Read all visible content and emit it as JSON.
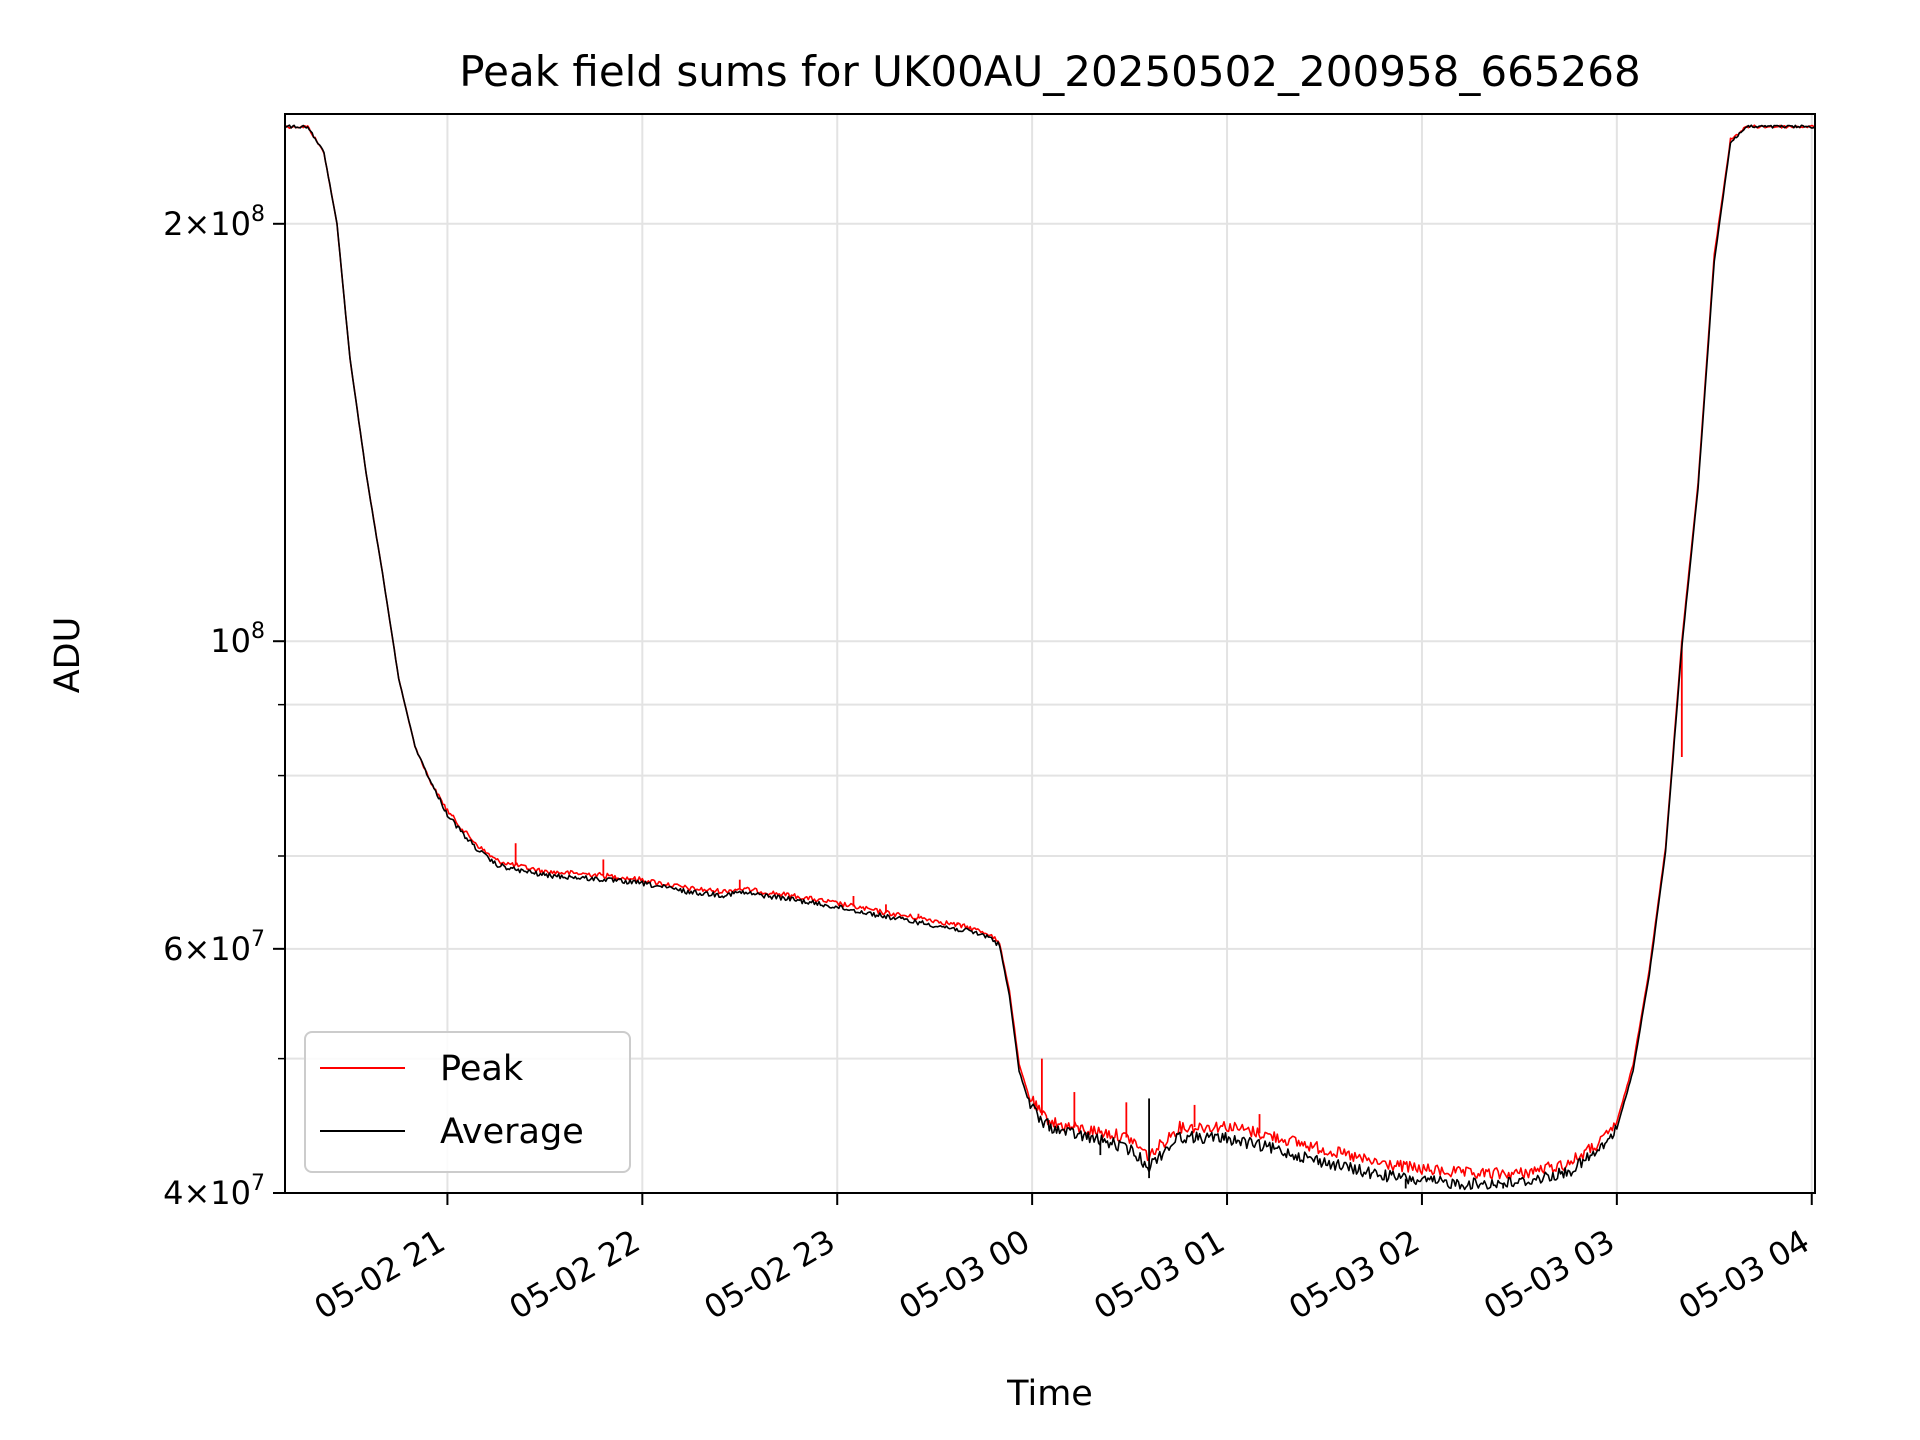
{
  "chart_data": {
    "type": "line",
    "title": "Peak field sums for UK00AU_20250502_200958_665268",
    "xlabel": "Time",
    "ylabel": "ADU",
    "yscale": "log",
    "xlim": [
      "2025-05-02 20:10",
      "2025-05-03 04:01"
    ],
    "ylim": [
      40000000,
      240000000
    ],
    "grid": true,
    "legend_position": "lower-left",
    "x_ticks": [
      {
        "t": "2025-05-02 21:00",
        "label": "05-02 21"
      },
      {
        "t": "2025-05-02 22:00",
        "label": "05-02 22"
      },
      {
        "t": "2025-05-02 23:00",
        "label": "05-02 23"
      },
      {
        "t": "2025-05-03 00:00",
        "label": "05-03 00"
      },
      {
        "t": "2025-05-03 01:00",
        "label": "05-03 01"
      },
      {
        "t": "2025-05-03 02:00",
        "label": "05-03 02"
      },
      {
        "t": "2025-05-03 03:00",
        "label": "05-03 03"
      },
      {
        "t": "2025-05-03 04:00",
        "label": "05-03 04"
      }
    ],
    "y_major_ticks": [
      {
        "value": 40000000,
        "mantissa": "4",
        "exp": "7"
      },
      {
        "value": 60000000,
        "mantissa": "6",
        "exp": "7"
      },
      {
        "value": 100000000,
        "mantissa": "",
        "exp": "8"
      },
      {
        "value": 200000000,
        "mantissa": "2",
        "exp": "8"
      }
    ],
    "y_minor_grid": [
      50000000,
      70000000,
      80000000,
      90000000
    ],
    "series": [
      {
        "name": "Peak",
        "color": "#ff0000",
        "points": [
          [
            "2025-05-02 20:10",
            235000000
          ],
          [
            "2025-05-02 20:17",
            235000000
          ],
          [
            "2025-05-02 20:22",
            225000000
          ],
          [
            "2025-05-02 20:26",
            200000000
          ],
          [
            "2025-05-02 20:30",
            160000000
          ],
          [
            "2025-05-02 20:35",
            132000000
          ],
          [
            "2025-05-02 20:40",
            112000000
          ],
          [
            "2025-05-02 20:45",
            94000000
          ],
          [
            "2025-05-02 20:50",
            84000000
          ],
          [
            "2025-05-02 20:55",
            79000000
          ],
          [
            "2025-05-02 21:00",
            75500000
          ],
          [
            "2025-05-02 21:05",
            73000000
          ],
          [
            "2025-05-02 21:10",
            71000000
          ],
          [
            "2025-05-02 21:15",
            69500000
          ],
          [
            "2025-05-02 21:20",
            69000000
          ],
          [
            "2025-05-02 21:30",
            68200000
          ],
          [
            "2025-05-02 21:45",
            67900000
          ],
          [
            "2025-05-02 22:00",
            67300000
          ],
          [
            "2025-05-02 22:15",
            66300000
          ],
          [
            "2025-05-02 22:25",
            66000000
          ],
          [
            "2025-05-02 22:30",
            66300000
          ],
          [
            "2025-05-02 22:45",
            65600000
          ],
          [
            "2025-05-02 23:00",
            64700000
          ],
          [
            "2025-05-02 23:15",
            63700000
          ],
          [
            "2025-05-02 23:30",
            62900000
          ],
          [
            "2025-05-02 23:40",
            62200000
          ],
          [
            "2025-05-02 23:47",
            61500000
          ],
          [
            "2025-05-02 23:50",
            60500000
          ],
          [
            "2025-05-02 23:53",
            56000000
          ],
          [
            "2025-05-02 23:56",
            49500000
          ],
          [
            "2025-05-02 23:59",
            47000000
          ],
          [
            "2025-05-03 00:03",
            45500000
          ],
          [
            "2025-05-03 00:08",
            44800000
          ],
          [
            "2025-05-03 00:15",
            44500000
          ],
          [
            "2025-05-03 00:25",
            44100000
          ],
          [
            "2025-05-03 00:30",
            43800000
          ],
          [
            "2025-05-03 00:36",
            42500000
          ],
          [
            "2025-05-03 00:45",
            44600000
          ],
          [
            "2025-05-03 01:00",
            44700000
          ],
          [
            "2025-05-03 01:15",
            43900000
          ],
          [
            "2025-05-03 01:30",
            43000000
          ],
          [
            "2025-05-03 01:45",
            42100000
          ],
          [
            "2025-05-03 02:00",
            41600000
          ],
          [
            "2025-05-03 02:15",
            41300000
          ],
          [
            "2025-05-03 02:30",
            41300000
          ],
          [
            "2025-05-03 02:45",
            42000000
          ],
          [
            "2025-05-03 02:55",
            43500000
          ],
          [
            "2025-05-03 03:00",
            45000000
          ],
          [
            "2025-05-03 03:05",
            49500000
          ],
          [
            "2025-05-03 03:10",
            58000000
          ],
          [
            "2025-05-03 03:15",
            71000000
          ],
          [
            "2025-05-03 03:20",
            100000000
          ],
          [
            "2025-05-03 03:25",
            130000000
          ],
          [
            "2025-05-03 03:30",
            190000000
          ],
          [
            "2025-05-03 03:35",
            230000000
          ],
          [
            "2025-05-03 03:40",
            235000000
          ],
          [
            "2025-05-03 04:01",
            235000000
          ]
        ],
        "spikes": [
          [
            "2025-05-02 21:21",
            71500000
          ],
          [
            "2025-05-02 21:48",
            69600000
          ],
          [
            "2025-05-02 22:30",
            67300000
          ],
          [
            "2025-05-02 23:05",
            65500000
          ],
          [
            "2025-05-02 23:15",
            64600000
          ],
          [
            "2025-05-02 23:25",
            63600000
          ],
          [
            "2025-05-02 23:37",
            62700000
          ],
          [
            "2025-05-03 00:03",
            50000000
          ],
          [
            "2025-05-03 00:13",
            47300000
          ],
          [
            "2025-05-03 00:29",
            46500000
          ],
          [
            "2025-05-03 00:50",
            46300000
          ],
          [
            "2025-05-03 01:10",
            45600000
          ],
          [
            "2025-05-03 03:20",
            82500000
          ]
        ]
      },
      {
        "name": "Average",
        "color": "#000000",
        "points": [
          [
            "2025-05-02 20:10",
            235000000
          ],
          [
            "2025-05-02 20:17",
            235000000
          ],
          [
            "2025-05-02 20:22",
            225000000
          ],
          [
            "2025-05-02 20:26",
            200000000
          ],
          [
            "2025-05-02 20:30",
            160000000
          ],
          [
            "2025-05-02 20:35",
            132000000
          ],
          [
            "2025-05-02 20:40",
            112000000
          ],
          [
            "2025-05-02 20:45",
            94000000
          ],
          [
            "2025-05-02 20:50",
            84000000
          ],
          [
            "2025-05-02 20:55",
            79000000
          ],
          [
            "2025-05-02 21:00",
            75000000
          ],
          [
            "2025-05-02 21:05",
            72500000
          ],
          [
            "2025-05-02 21:10",
            70500000
          ],
          [
            "2025-05-02 21:15",
            69000000
          ],
          [
            "2025-05-02 21:20",
            68500000
          ],
          [
            "2025-05-02 21:30",
            67800000
          ],
          [
            "2025-05-02 21:45",
            67400000
          ],
          [
            "2025-05-02 22:00",
            66900000
          ],
          [
            "2025-05-02 22:15",
            65900000
          ],
          [
            "2025-05-02 22:25",
            65600000
          ],
          [
            "2025-05-02 22:30",
            65900000
          ],
          [
            "2025-05-02 22:45",
            65200000
          ],
          [
            "2025-05-02 23:00",
            64300000
          ],
          [
            "2025-05-02 23:15",
            63300000
          ],
          [
            "2025-05-02 23:30",
            62400000
          ],
          [
            "2025-05-02 23:40",
            61800000
          ],
          [
            "2025-05-02 23:47",
            61200000
          ],
          [
            "2025-05-02 23:50",
            60300000
          ],
          [
            "2025-05-02 23:53",
            55500000
          ],
          [
            "2025-05-02 23:56",
            49000000
          ],
          [
            "2025-05-02 23:59",
            46500000
          ],
          [
            "2025-05-03 00:03",
            45000000
          ],
          [
            "2025-05-03 00:08",
            44400000
          ],
          [
            "2025-05-03 00:15",
            44000000
          ],
          [
            "2025-05-03 00:25",
            43400000
          ],
          [
            "2025-05-03 00:30",
            43000000
          ],
          [
            "2025-05-03 00:36",
            41800000
          ],
          [
            "2025-05-03 00:45",
            43900000
          ],
          [
            "2025-05-03 01:00",
            43800000
          ],
          [
            "2025-05-03 01:15",
            43000000
          ],
          [
            "2025-05-03 01:30",
            42100000
          ],
          [
            "2025-05-03 01:45",
            41300000
          ],
          [
            "2025-05-03 02:00",
            40800000
          ],
          [
            "2025-05-03 02:15",
            40600000
          ],
          [
            "2025-05-03 02:30",
            40700000
          ],
          [
            "2025-05-03 02:45",
            41400000
          ],
          [
            "2025-05-03 02:55",
            43000000
          ],
          [
            "2025-05-03 03:00",
            44500000
          ],
          [
            "2025-05-03 03:05",
            49000000
          ],
          [
            "2025-05-03 03:10",
            57500000
          ],
          [
            "2025-05-03 03:15",
            70500000
          ],
          [
            "2025-05-03 03:20",
            99000000
          ],
          [
            "2025-05-03 03:25",
            129000000
          ],
          [
            "2025-05-03 03:30",
            188000000
          ],
          [
            "2025-05-03 03:35",
            229000000
          ],
          [
            "2025-05-03 03:40",
            235000000
          ],
          [
            "2025-05-03 04:01",
            235000000
          ]
        ],
        "spikes": [
          [
            "2025-05-03 00:36",
            46800000
          ],
          [
            "2025-05-03 00:36",
            41000000
          ],
          [
            "2025-05-03 00:21",
            42600000
          ],
          [
            "2025-05-03 01:55",
            40300000
          ],
          [
            "2025-05-03 02:25",
            40300000
          ]
        ]
      }
    ]
  }
}
